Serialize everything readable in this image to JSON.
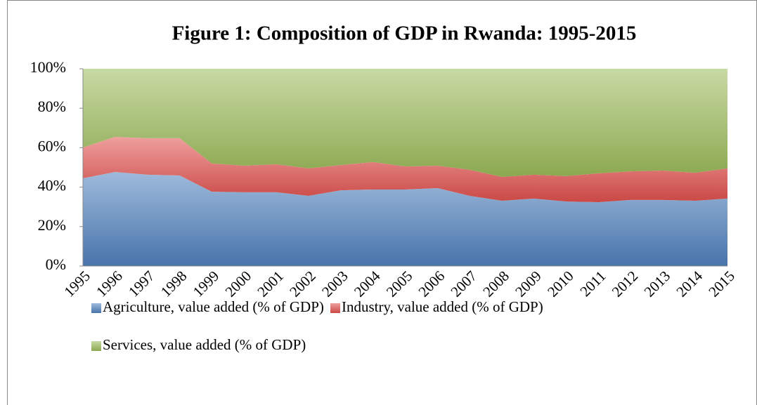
{
  "chart_data": {
    "type": "stacked-area",
    "title": "Figure 1: Composition of GDP in Rwanda: 1995-2015",
    "categories": [
      "1995",
      "1996",
      "1997",
      "1998",
      "1999",
      "2000",
      "2001",
      "2002",
      "2003",
      "2004",
      "2005",
      "2006",
      "2007",
      "2008",
      "2009",
      "2010",
      "2011",
      "2012",
      "2013",
      "2014",
      "2015"
    ],
    "series": [
      {
        "name": "Agriculture, value added (% of GDP)",
        "color": "#4f81bd",
        "values": [
          44.5,
          47.7,
          46.3,
          45.9,
          37.7,
          37.4,
          37.4,
          35.6,
          38.4,
          38.8,
          38.8,
          39.5,
          35.6,
          33.1,
          34.2,
          32.7,
          32.4,
          33.5,
          33.5,
          33.1,
          34.2
        ]
      },
      {
        "name": "Industry, value added (% of GDP)",
        "color": "#e0504d",
        "values": [
          15.6,
          17.8,
          18.5,
          18.9,
          14.3,
          13.5,
          14.2,
          13.9,
          12.8,
          13.9,
          11.7,
          11.4,
          13.2,
          12.1,
          12.1,
          12.9,
          14.6,
          14.5,
          14.9,
          14.2,
          15.3
        ]
      },
      {
        "name": "Services, value added (% of GDP)",
        "color": "#9bbb59",
        "values": [
          39.9,
          34.5,
          35.2,
          35.2,
          48.0,
          49.1,
          48.4,
          50.5,
          48.8,
          47.3,
          49.5,
          49.1,
          51.2,
          54.8,
          53.7,
          54.4,
          53.0,
          52.0,
          51.6,
          52.7,
          50.5
        ]
      }
    ],
    "ylim": [
      0,
      100
    ],
    "yticks": [
      {
        "value": 0,
        "label": "0%"
      },
      {
        "value": 20,
        "label": "20%"
      },
      {
        "value": 40,
        "label": "40%"
      },
      {
        "value": 60,
        "label": "60%"
      },
      {
        "value": 80,
        "label": "80%"
      },
      {
        "value": 100,
        "label": "100%"
      }
    ],
    "legend": "bottom"
  }
}
